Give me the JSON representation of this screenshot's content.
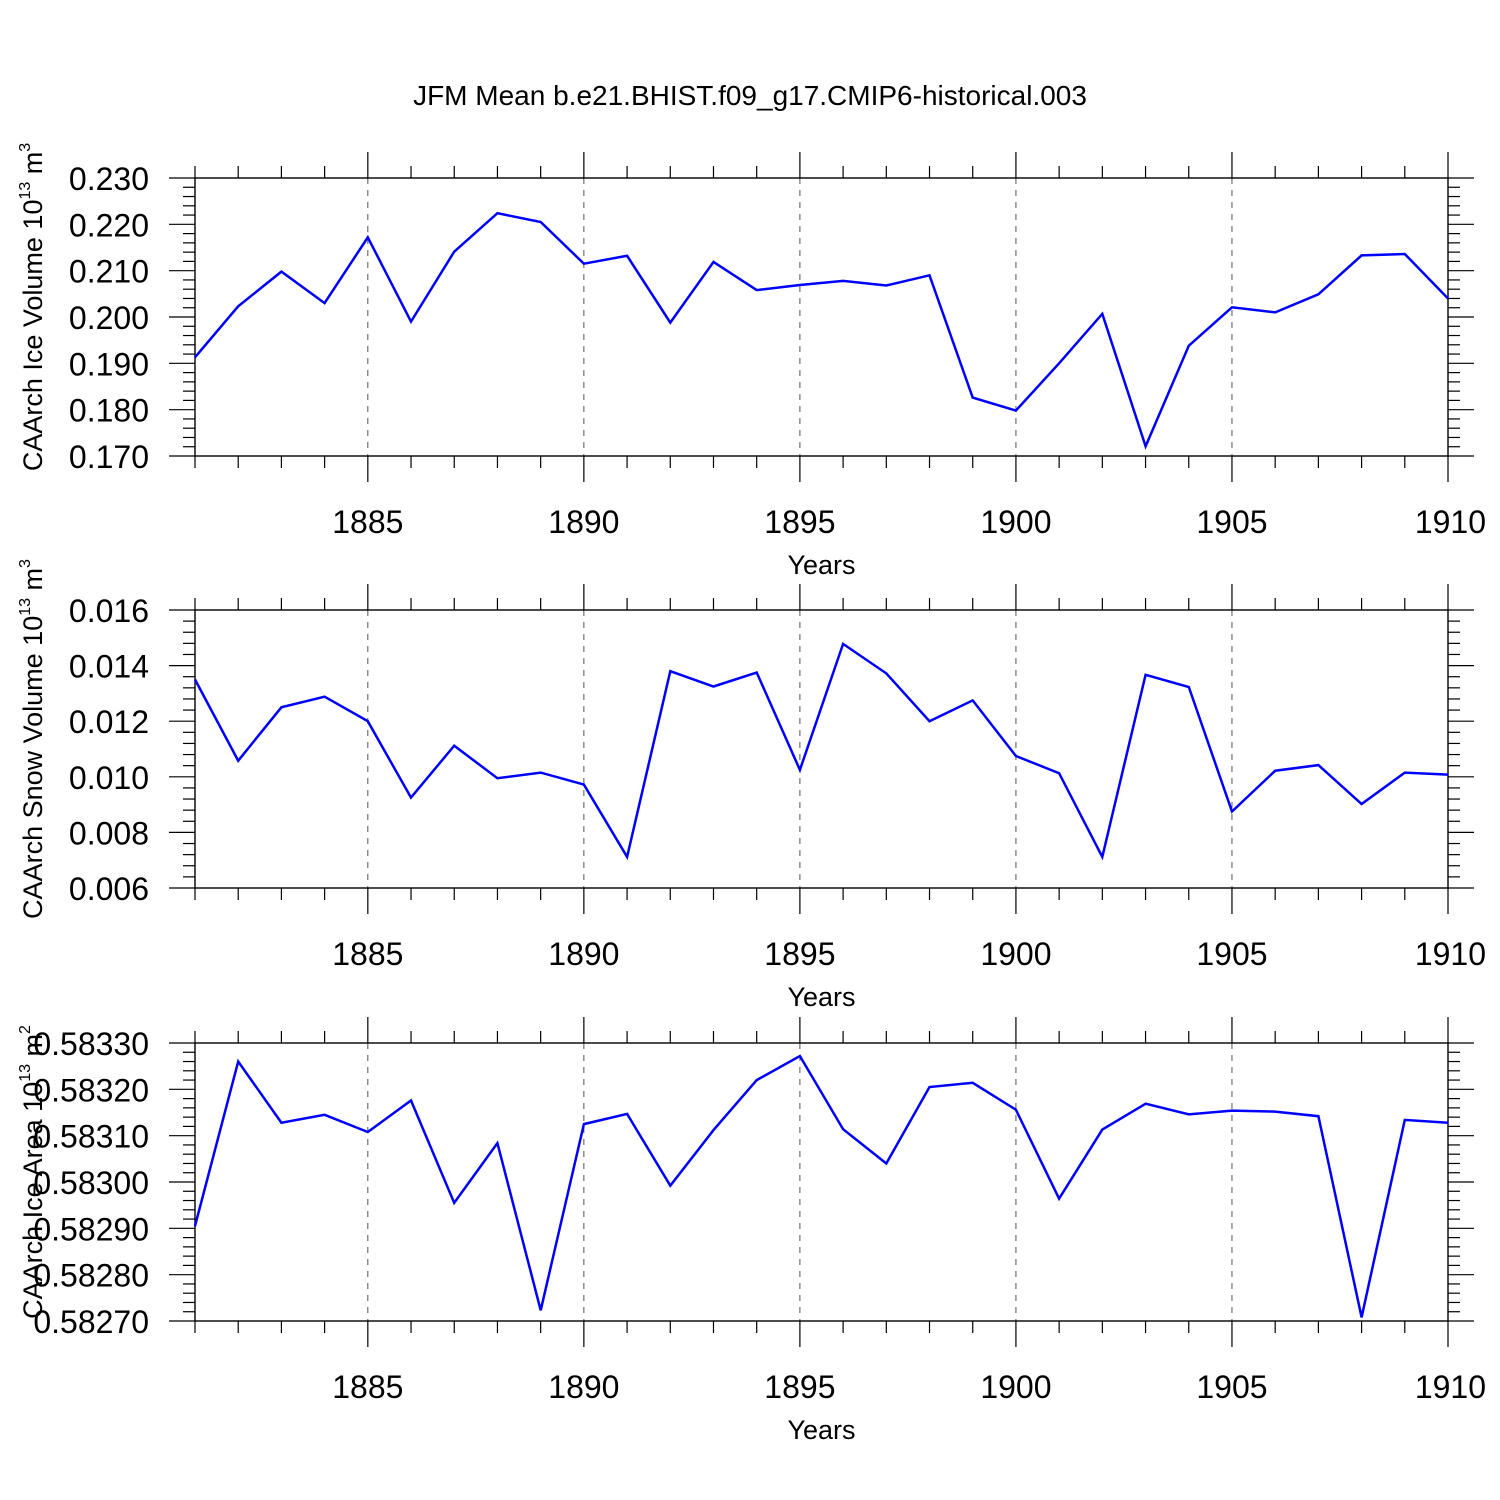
{
  "figure": {
    "title": "JFM Mean b.e21.BHIST.f09_g17.CMIP6-historical.003"
  },
  "chart_data": [
    {
      "type": "line",
      "title": "",
      "xlabel": "Years",
      "ylabel": {
        "text": "CAArch Ice Volume 10",
        "sup1": "13",
        "mid": " m",
        "sup2": "3"
      },
      "x": [
        1881,
        1882,
        1883,
        1884,
        1885,
        1886,
        1887,
        1888,
        1889,
        1890,
        1891,
        1892,
        1893,
        1894,
        1895,
        1896,
        1897,
        1898,
        1899,
        1900,
        1901,
        1902,
        1903,
        1904,
        1905,
        1906,
        1907,
        1908,
        1909,
        1910
      ],
      "series": [
        {
          "name": "CAArch Ice Volume",
          "color": "#0000ff",
          "values": [
            0.1913,
            0.2023,
            0.2098,
            0.203,
            0.2172,
            0.199,
            0.2141,
            0.2224,
            0.2205,
            0.2115,
            0.2132,
            0.1988,
            0.2119,
            0.2058,
            0.2069,
            0.2078,
            0.2068,
            0.209,
            0.1826,
            0.1798,
            0.19,
            0.2007,
            0.1721,
            0.1938,
            0.2021,
            0.201,
            0.2049,
            0.2133,
            0.2136,
            0.204
          ]
        }
      ],
      "xlim": [
        1881,
        1910
      ],
      "ylim": [
        0.17,
        0.23
      ],
      "yticks": [
        0.17,
        0.18,
        0.19,
        0.2,
        0.21,
        0.22,
        0.23
      ],
      "ytick_labels": [
        "0.170",
        "0.180",
        "0.190",
        "0.200",
        "0.210",
        "0.220",
        "0.230"
      ],
      "yminor_step": 0.002,
      "xticks": [
        1885,
        1890,
        1895,
        1900,
        1905,
        1910
      ],
      "xtick_labels": [
        "1885",
        "1890",
        "1895",
        "1900",
        "1905",
        "1910"
      ],
      "gridlines": "vertical dashed at major x ticks"
    },
    {
      "type": "line",
      "title": "",
      "xlabel": "Years",
      "ylabel": {
        "text": "CAArch Snow Volume 10",
        "sup1": "13",
        "mid": " m",
        "sup2": "3"
      },
      "x": [
        1881,
        1882,
        1883,
        1884,
        1885,
        1886,
        1887,
        1888,
        1889,
        1890,
        1891,
        1892,
        1893,
        1894,
        1895,
        1896,
        1897,
        1898,
        1899,
        1900,
        1901,
        1902,
        1903,
        1904,
        1905,
        1906,
        1907,
        1908,
        1909,
        1910
      ],
      "series": [
        {
          "name": "CAArch Snow Volume",
          "color": "#0000ff",
          "values": [
            0.0135,
            0.01058,
            0.0125,
            0.01288,
            0.012,
            0.00925,
            0.01112,
            0.00995,
            0.01015,
            0.00972,
            0.00712,
            0.0138,
            0.01325,
            0.01375,
            0.01025,
            0.01478,
            0.01372,
            0.012,
            0.01275,
            0.01075,
            0.01013,
            0.00712,
            0.01367,
            0.01323,
            0.00875,
            0.01022,
            0.01042,
            0.00902,
            0.01015,
            0.01008
          ]
        }
      ],
      "xlim": [
        1881,
        1910
      ],
      "ylim": [
        0.006,
        0.016
      ],
      "yticks": [
        0.006,
        0.008,
        0.01,
        0.012,
        0.014,
        0.016
      ],
      "ytick_labels": [
        "0.006",
        "0.008",
        "0.010",
        "0.012",
        "0.014",
        "0.016"
      ],
      "yminor_step": 0.0004,
      "xticks": [
        1885,
        1890,
        1895,
        1900,
        1905,
        1910
      ],
      "xtick_labels": [
        "1885",
        "1890",
        "1895",
        "1900",
        "1905",
        "1910"
      ],
      "gridlines": "vertical dashed at major x ticks"
    },
    {
      "type": "line",
      "title": "",
      "xlabel": "Years",
      "ylabel": {
        "text": "CAArch Ice Area 10",
        "sup1": "13",
        "mid": " m",
        "sup2": "2"
      },
      "x": [
        1881,
        1882,
        1883,
        1884,
        1885,
        1886,
        1887,
        1888,
        1889,
        1890,
        1891,
        1892,
        1893,
        1894,
        1895,
        1896,
        1897,
        1898,
        1899,
        1900,
        1901,
        1902,
        1903,
        1904,
        1905,
        1906,
        1907,
        1908,
        1909,
        1910
      ],
      "series": [
        {
          "name": "CAArch Ice Area",
          "color": "#0000ff",
          "values": [
            0.582905,
            0.58326,
            0.583128,
            0.583145,
            0.583108,
            0.583176,
            0.582955,
            0.583084,
            0.582723,
            0.583125,
            0.583147,
            0.582992,
            0.583112,
            0.58322,
            0.583272,
            0.583114,
            0.58304,
            0.583205,
            0.583214,
            0.583156,
            0.582964,
            0.583113,
            0.583169,
            0.583146,
            0.583154,
            0.583152,
            0.583142,
            0.582708,
            0.583134,
            0.583128
          ]
        }
      ],
      "xlim": [
        1881,
        1910
      ],
      "ylim": [
        0.5827,
        0.5833
      ],
      "yticks": [
        0.5827,
        0.5828,
        0.5829,
        0.583,
        0.5831,
        0.5832,
        0.5833
      ],
      "ytick_labels": [
        "0.58270",
        "0.58280",
        "0.58290",
        "0.58300",
        "0.58310",
        "0.58320",
        "0.58330"
      ],
      "yminor_step": 2e-05,
      "xticks": [
        1885,
        1890,
        1895,
        1900,
        1905,
        1910
      ],
      "xtick_labels": [
        "1885",
        "1890",
        "1895",
        "1900",
        "1905",
        "1910"
      ],
      "gridlines": "vertical dashed at major x ticks"
    }
  ]
}
